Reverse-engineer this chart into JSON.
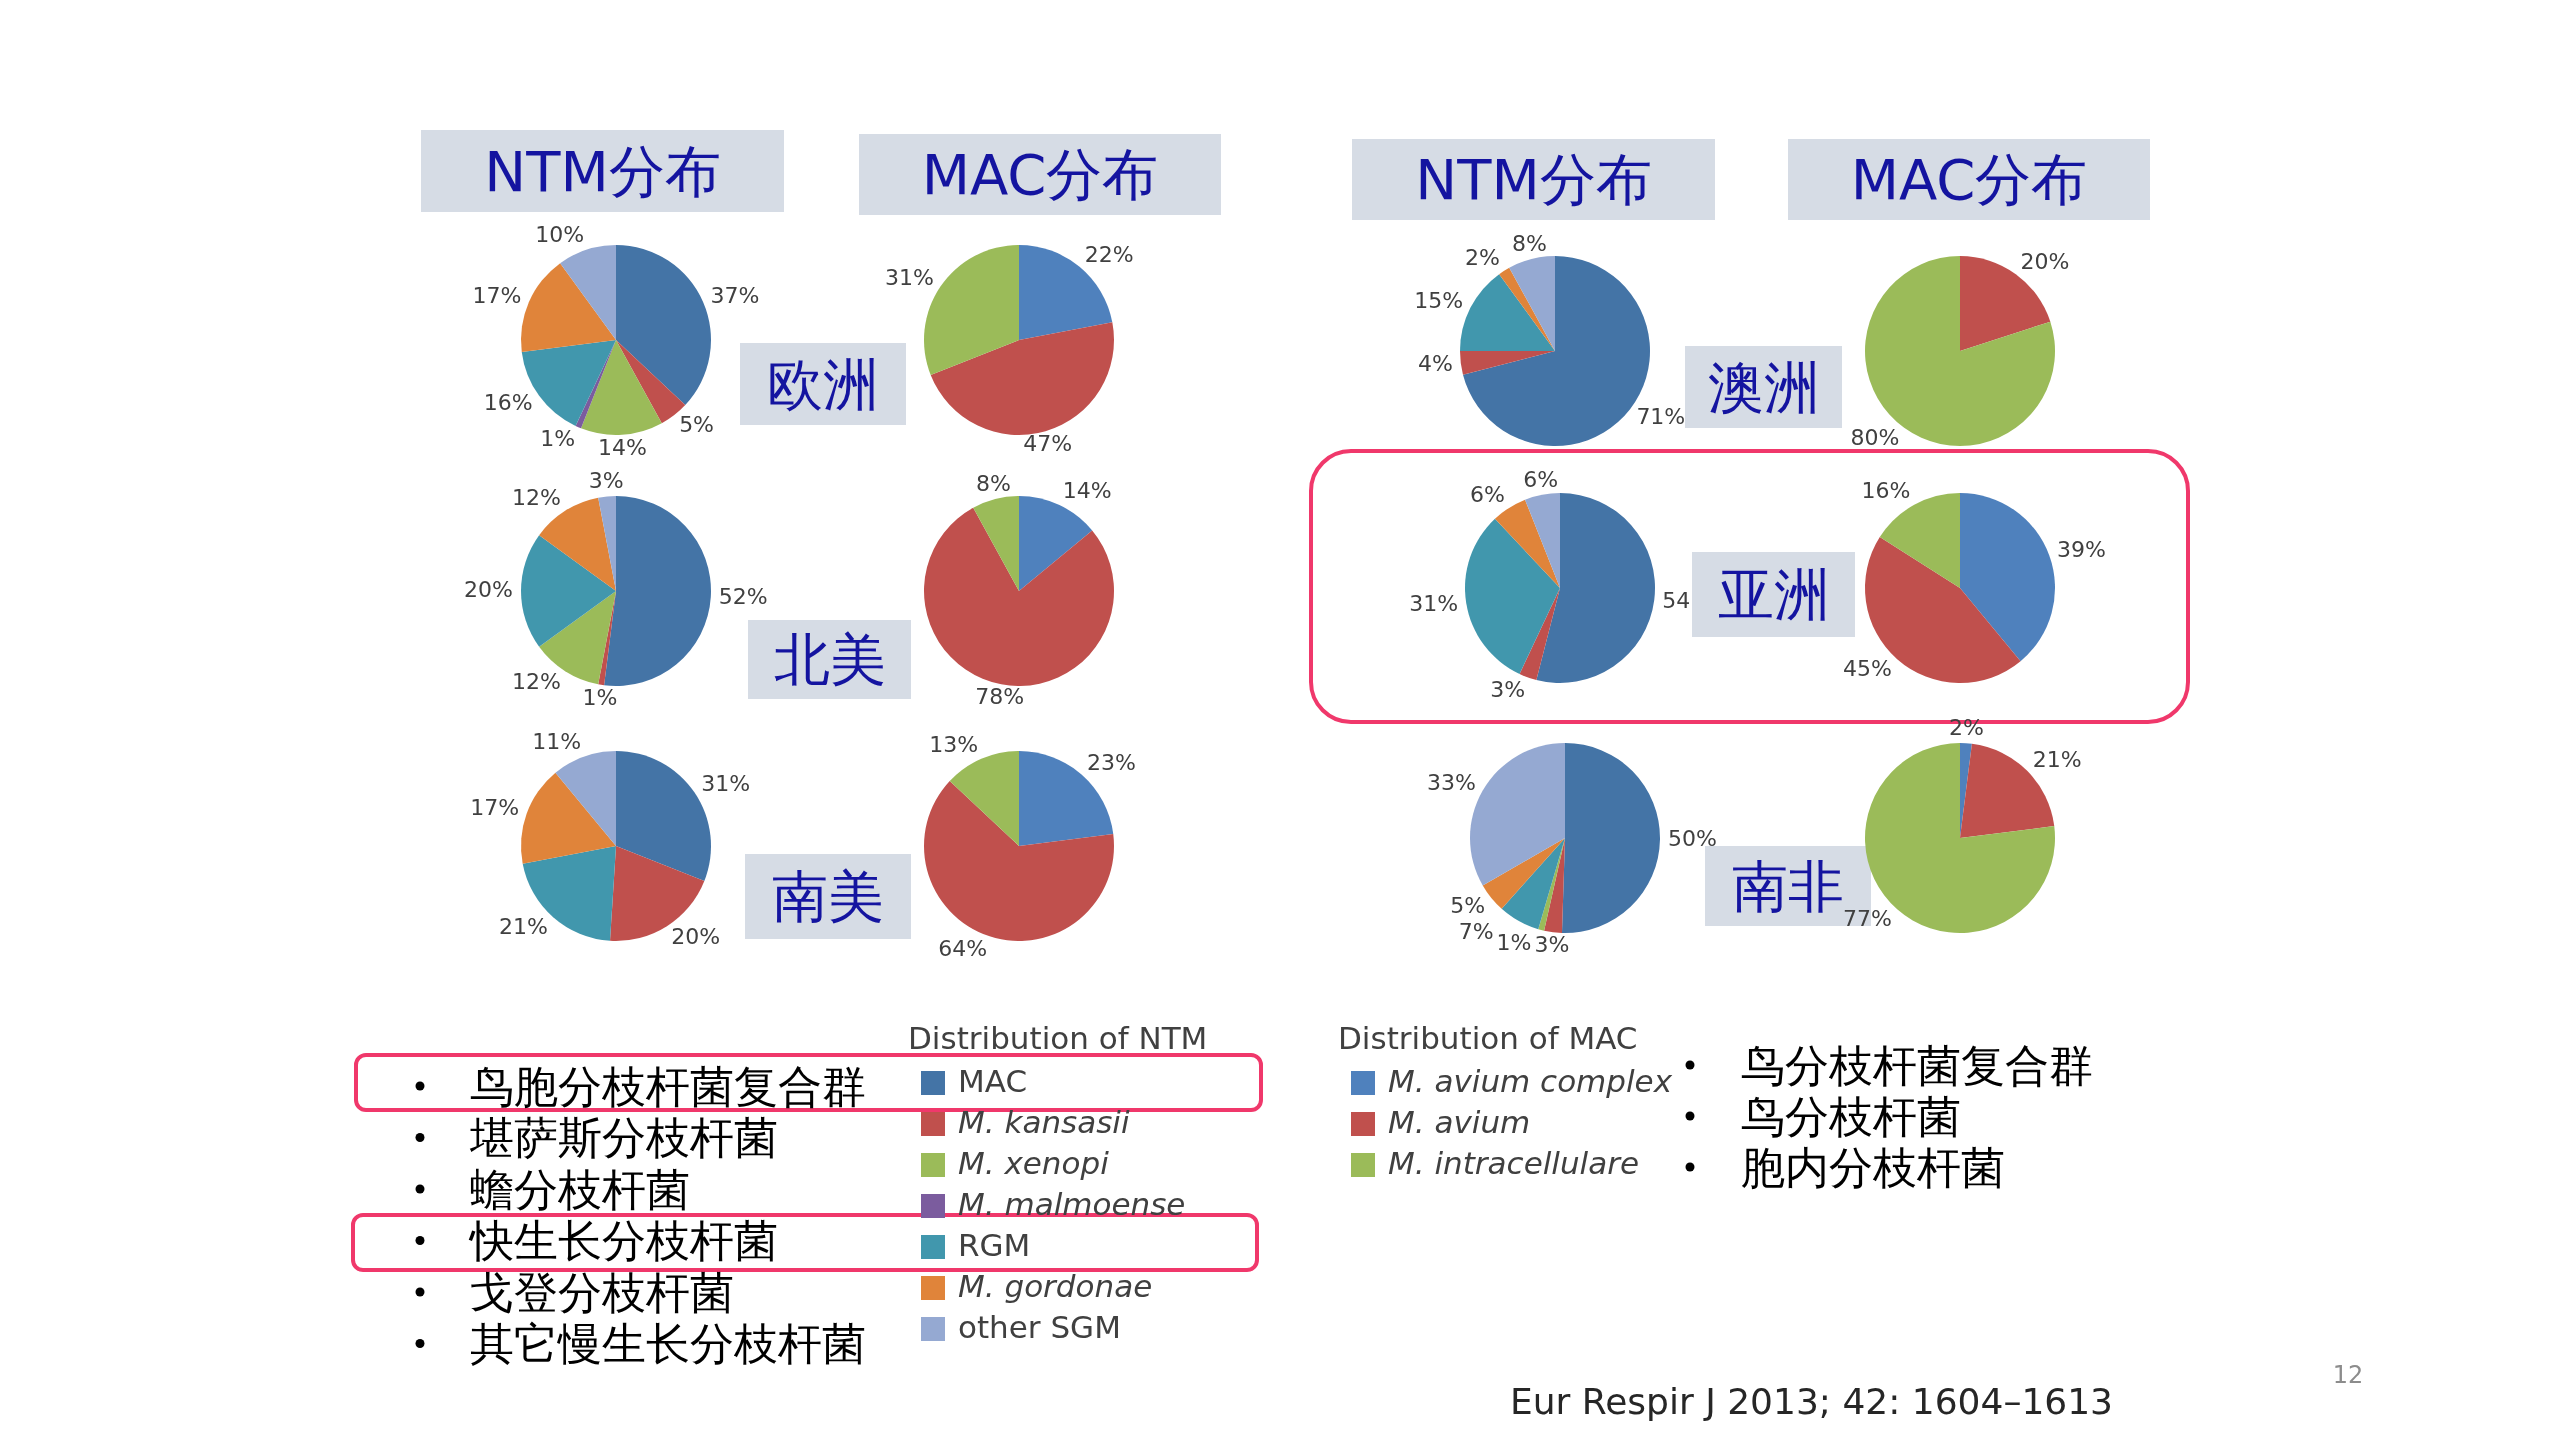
{
  "chart_data": [
    {
      "type": "pie",
      "title": "NTM分布",
      "annotations": [
        "欧洲"
      ],
      "legend": "bottom",
      "legend_title": "Distribution of NTM",
      "categories": [
        "MAC",
        "M. kansasii",
        "M. xenopi",
        "M. malmoense",
        "RGM",
        "M. gordonae",
        "other SGM"
      ],
      "colors": [
        "#4474a6",
        "#c0504d",
        "#9bbb59",
        "#7b5c9e",
        "#4197ad",
        "#e0843a",
        "#95a9d2"
      ],
      "values": [
        37,
        5,
        14,
        1,
        16,
        17,
        10
      ],
      "value_labels": [
        "37%",
        "5%",
        "14%",
        "1%",
        "16%",
        "17%",
        "10%"
      ]
    },
    {
      "type": "pie",
      "title": "MAC分布",
      "legend": "bottom",
      "legend_title": "Distribution of MAC",
      "categories": [
        "M. avium complex",
        "M. avium",
        "M. intracellulare"
      ],
      "colors": [
        "#4f81bd",
        "#c0504d",
        "#9bbb59"
      ],
      "values": [
        22,
        47,
        31
      ],
      "value_labels": [
        "22%",
        "47%",
        "31%"
      ]
    },
    {
      "type": "pie",
      "title": "NTM分布",
      "annotations": [
        "澳洲"
      ],
      "categories": [
        null,
        null,
        null,
        null,
        null
      ],
      "colors": [
        "#4474a6",
        "#c0504d",
        "#4197ad",
        "#e0843a",
        "#95a9d2"
      ],
      "values": [
        71,
        4,
        15,
        2,
        8
      ],
      "value_labels": [
        "71%",
        "4%",
        "15%",
        "2%",
        "8%"
      ]
    },
    {
      "type": "pie",
      "title": "MAC分布",
      "categories": [
        null,
        null
      ],
      "colors": [
        "#c0504d",
        "#9bbb59"
      ],
      "values": [
        20,
        80
      ],
      "value_labels": [
        "20%",
        "80%"
      ]
    },
    {
      "type": "pie",
      "annotations": [
        "北美"
      ],
      "categories": [
        null,
        null,
        null,
        null,
        null,
        null
      ],
      "colors": [
        "#4474a6",
        "#c0504d",
        "#9bbb59",
        "#4197ad",
        "#e0843a",
        "#95a9d2"
      ],
      "values": [
        52,
        1,
        12,
        20,
        12,
        3
      ],
      "value_labels": [
        "52%",
        "1%",
        "12%",
        "20%",
        "12%",
        "3%"
      ]
    },
    {
      "type": "pie",
      "categories": [
        null,
        null,
        null
      ],
      "colors": [
        "#4f81bd",
        "#c0504d",
        "#9bbb59"
      ],
      "values": [
        14,
        78,
        8
      ],
      "value_labels": [
        "14%",
        "78%",
        "8%"
      ]
    },
    {
      "type": "pie",
      "annotations": [
        "亚洲"
      ],
      "categories": [
        null,
        null,
        null,
        null,
        null
      ],
      "colors": [
        "#4474a6",
        "#c0504d",
        "#4197ad",
        "#e0843a",
        "#95a9d2"
      ],
      "values": [
        54,
        3,
        31,
        6,
        6
      ],
      "value_labels": [
        "54",
        "3%",
        "31%",
        "6%",
        "6%"
      ]
    },
    {
      "type": "pie",
      "categories": [
        null,
        null,
        null
      ],
      "colors": [
        "#4f81bd",
        "#c0504d",
        "#9bbb59"
      ],
      "values": [
        39,
        45,
        16
      ],
      "value_labels": [
        "39%",
        "45%",
        "16%"
      ]
    },
    {
      "type": "pie",
      "annotations": [
        "南美"
      ],
      "categories": [
        null,
        null,
        null,
        null,
        null
      ],
      "colors": [
        "#4474a6",
        "#c0504d",
        "#4197ad",
        "#e0843a",
        "#95a9d2"
      ],
      "values": [
        31,
        20,
        21,
        17,
        11
      ],
      "value_labels": [
        "31%",
        "20%",
        "21%",
        "17%",
        "11%"
      ]
    },
    {
      "type": "pie",
      "categories": [
        null,
        null,
        null
      ],
      "colors": [
        "#4f81bd",
        "#c0504d",
        "#9bbb59"
      ],
      "values": [
        23,
        64,
        13
      ],
      "value_labels": [
        "23%",
        "64%",
        "13%"
      ]
    },
    {
      "type": "pie",
      "annotations": [
        "南非"
      ],
      "categories": [
        null,
        null,
        null,
        null,
        null,
        null
      ],
      "colors": [
        "#4474a6",
        "#c0504d",
        "#9bbb59",
        "#4197ad",
        "#e0843a",
        "#95a9d2"
      ],
      "values": [
        50,
        3,
        1,
        7,
        5,
        33
      ],
      "value_labels": [
        "50%",
        "3%",
        "1%",
        "7%",
        "5%",
        "33%"
      ]
    },
    {
      "type": "pie",
      "categories": [
        null,
        null,
        null
      ],
      "colors": [
        "#4f81bd",
        "#c0504d",
        "#9bbb59"
      ],
      "values": [
        2,
        21,
        77
      ],
      "value_labels": [
        "2%",
        "21%",
        "77%"
      ]
    },
    {
      "type": "other",
      "annotations": [
        "鸟胞分枝杆菌复合群",
        "堪萨斯分枝杆菌",
        "蟾分枝杆菌",
        "快生长分枝杆菌",
        "戈登分枝杆菌",
        "其它慢生长分枝杆菌"
      ]
    },
    {
      "type": "other",
      "annotations": [
        "鸟分枝杆菌复合群",
        "鸟分枝杆菌",
        "胞内分枝杆菌"
      ]
    },
    {
      "type": "other",
      "annotations": [
        "Eur Respir J 2013; 42: 1604–1613",
        "12"
      ]
    }
  ]
}
